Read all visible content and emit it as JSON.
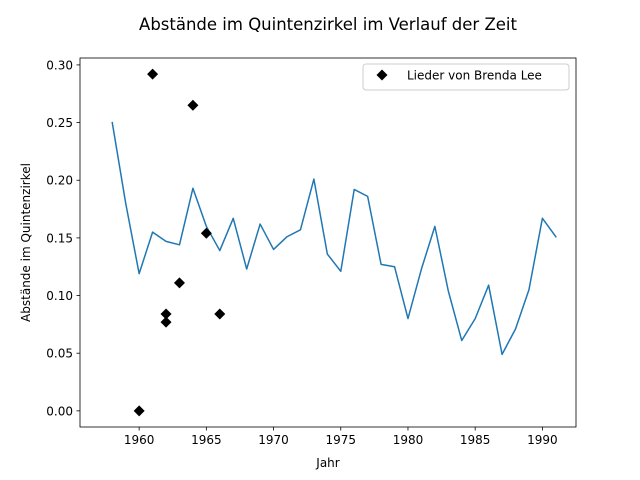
{
  "chart_data": {
    "type": "line",
    "title": "Abstände im Quintenzirkel im Verlauf der Zeit",
    "xlabel": "Jahr",
    "ylabel": "Abstände im Quintenzirkel",
    "xlim": [
      1955.6,
      1992.5
    ],
    "ylim": [
      -0.014,
      0.306
    ],
    "x_ticks": [
      1960,
      1965,
      1970,
      1975,
      1980,
      1985,
      1990
    ],
    "y_ticks": [
      0.0,
      0.05,
      0.1,
      0.15,
      0.2,
      0.25,
      0.3
    ],
    "y_tick_labels": [
      "0.00",
      "0.05",
      "0.10",
      "0.15",
      "0.20",
      "0.25",
      "0.30"
    ],
    "grid": false,
    "legend_position": "top-right",
    "series": [
      {
        "type": "line",
        "color": "#1f77b4",
        "x": [
          1958,
          1959,
          1960,
          1961,
          1962,
          1963,
          1964,
          1965,
          1966,
          1967,
          1968,
          1969,
          1970,
          1971,
          1972,
          1973,
          1974,
          1975,
          1976,
          1977,
          1978,
          1979,
          1980,
          1981,
          1982,
          1983,
          1984,
          1985,
          1986,
          1987,
          1988,
          1989,
          1990,
          1991
        ],
        "y": [
          0.25,
          0.18,
          0.119,
          0.155,
          0.147,
          0.144,
          0.193,
          0.16,
          0.139,
          0.167,
          0.123,
          0.162,
          0.14,
          0.151,
          0.157,
          0.201,
          0.136,
          0.121,
          0.192,
          0.186,
          0.127,
          0.125,
          0.08,
          0.123,
          0.16,
          0.104,
          0.061,
          0.08,
          0.109,
          0.049,
          0.071,
          0.105,
          0.167,
          0.151
        ]
      },
      {
        "type": "scatter",
        "name": "Lieder von Brenda Lee",
        "color": "#000000",
        "marker": "diamond",
        "x": [
          1960,
          1961,
          1962,
          1962,
          1963,
          1964,
          1965,
          1966
        ],
        "y": [
          0.0,
          0.292,
          0.084,
          0.077,
          0.111,
          0.265,
          0.154,
          0.084
        ]
      }
    ]
  }
}
